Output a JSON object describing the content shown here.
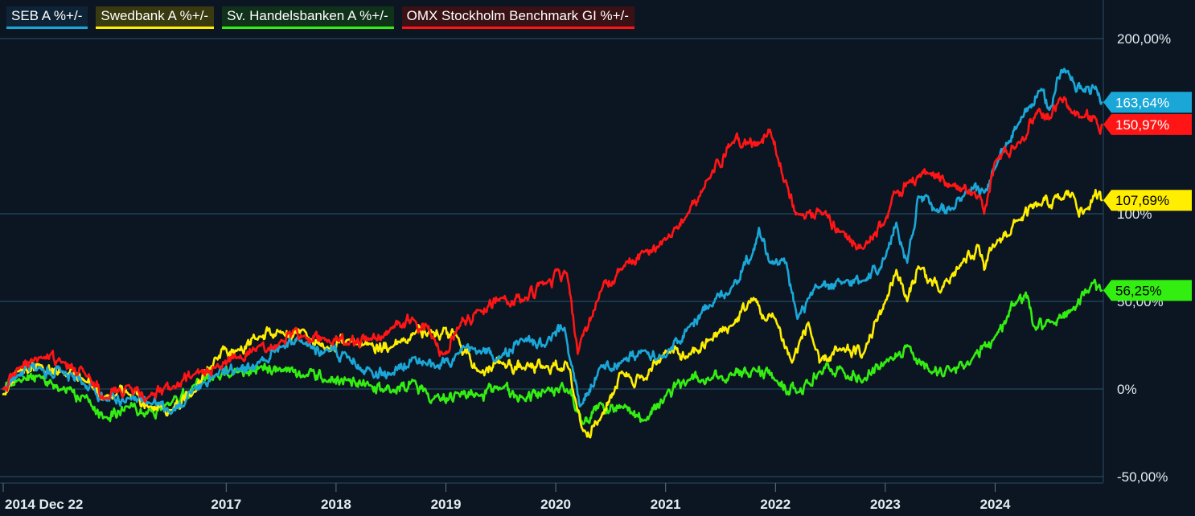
{
  "chart_data": {
    "type": "line",
    "title": "",
    "xlabel": "",
    "ylabel": "",
    "ylim": [
      -50,
      230
    ],
    "y_ticks": [
      {
        "value": 200,
        "label": "200,00%"
      },
      {
        "value": 100,
        "label": "100%"
      },
      {
        "value": 50,
        "label": "50,00%"
      },
      {
        "value": 0,
        "label": "0%"
      },
      {
        "value": -50,
        "label": "-50,00%"
      }
    ],
    "x_ticks": [
      {
        "value": 2014.97,
        "label": "2014 Dec 22"
      },
      {
        "value": 2017,
        "label": "2017"
      },
      {
        "value": 2018,
        "label": "2018"
      },
      {
        "value": 2019,
        "label": "2019"
      },
      {
        "value": 2020,
        "label": "2020"
      },
      {
        "value": 2021,
        "label": "2021"
      },
      {
        "value": 2022,
        "label": "2022"
      },
      {
        "value": 2023,
        "label": "2023"
      },
      {
        "value": 2024,
        "label": "2024"
      }
    ],
    "x_range": [
      2014.97,
      2024.97
    ],
    "legend_position": "top-left",
    "series": [
      {
        "name": "SEB A %+/-",
        "color": "#1aa7d8",
        "end_label": "163,64%",
        "points": [
          [
            2014.97,
            0
          ],
          [
            2015.1,
            8
          ],
          [
            2015.3,
            12
          ],
          [
            2015.5,
            10
          ],
          [
            2015.7,
            3
          ],
          [
            2015.9,
            -6
          ],
          [
            2016.1,
            -5
          ],
          [
            2016.3,
            -8
          ],
          [
            2016.5,
            -14
          ],
          [
            2016.7,
            0
          ],
          [
            2016.9,
            8
          ],
          [
            2017.1,
            12
          ],
          [
            2017.3,
            15
          ],
          [
            2017.5,
            24
          ],
          [
            2017.7,
            26
          ],
          [
            2017.9,
            22
          ],
          [
            2018.1,
            18
          ],
          [
            2018.3,
            12
          ],
          [
            2018.5,
            8
          ],
          [
            2018.7,
            18
          ],
          [
            2018.9,
            12
          ],
          [
            2019.1,
            20
          ],
          [
            2019.3,
            22
          ],
          [
            2019.5,
            18
          ],
          [
            2019.7,
            28
          ],
          [
            2019.9,
            24
          ],
          [
            2020.08,
            35
          ],
          [
            2020.22,
            -10
          ],
          [
            2020.4,
            12
          ],
          [
            2020.6,
            16
          ],
          [
            2020.8,
            22
          ],
          [
            2021.0,
            18
          ],
          [
            2021.2,
            35
          ],
          [
            2021.4,
            48
          ],
          [
            2021.6,
            58
          ],
          [
            2021.8,
            80
          ],
          [
            2021.85,
            92
          ],
          [
            2021.95,
            72
          ],
          [
            2022.1,
            72
          ],
          [
            2022.2,
            40
          ],
          [
            2022.4,
            58
          ],
          [
            2022.6,
            60
          ],
          [
            2022.8,
            62
          ],
          [
            2023.0,
            75
          ],
          [
            2023.1,
            95
          ],
          [
            2023.2,
            72
          ],
          [
            2023.3,
            110
          ],
          [
            2023.45,
            102
          ],
          [
            2023.6,
            103
          ],
          [
            2023.75,
            112
          ],
          [
            2023.9,
            112
          ],
          [
            2024.0,
            126
          ],
          [
            2024.2,
            150
          ],
          [
            2024.4,
            170
          ],
          [
            2024.5,
            160
          ],
          [
            2024.6,
            182
          ],
          [
            2024.7,
            178
          ],
          [
            2024.8,
            170
          ],
          [
            2024.9,
            172
          ],
          [
            2024.97,
            163.64
          ]
        ]
      },
      {
        "name": "Swedbank A %+/-",
        "color": "#ffee00",
        "end_label": "107,69%",
        "points": [
          [
            2014.97,
            -3
          ],
          [
            2015.1,
            10
          ],
          [
            2015.3,
            14
          ],
          [
            2015.5,
            10
          ],
          [
            2015.7,
            5
          ],
          [
            2015.9,
            -4
          ],
          [
            2016.1,
            -2
          ],
          [
            2016.3,
            -10
          ],
          [
            2016.5,
            -12
          ],
          [
            2016.7,
            -2
          ],
          [
            2016.9,
            18
          ],
          [
            2017.1,
            22
          ],
          [
            2017.3,
            30
          ],
          [
            2017.5,
            32
          ],
          [
            2017.7,
            34
          ],
          [
            2017.9,
            22
          ],
          [
            2018.1,
            28
          ],
          [
            2018.3,
            26
          ],
          [
            2018.5,
            24
          ],
          [
            2018.7,
            32
          ],
          [
            2018.85,
            34
          ],
          [
            2019.1,
            30
          ],
          [
            2019.3,
            10
          ],
          [
            2019.5,
            15
          ],
          [
            2019.7,
            12
          ],
          [
            2019.9,
            12
          ],
          [
            2020.1,
            15
          ],
          [
            2020.25,
            -24
          ],
          [
            2020.4,
            -18
          ],
          [
            2020.6,
            10
          ],
          [
            2020.8,
            5
          ],
          [
            2021.0,
            22
          ],
          [
            2021.2,
            18
          ],
          [
            2021.4,
            28
          ],
          [
            2021.6,
            36
          ],
          [
            2021.8,
            52
          ],
          [
            2021.9,
            40
          ],
          [
            2022.0,
            40
          ],
          [
            2022.15,
            15
          ],
          [
            2022.3,
            38
          ],
          [
            2022.4,
            15
          ],
          [
            2022.6,
            22
          ],
          [
            2022.8,
            20
          ],
          [
            2023.0,
            50
          ],
          [
            2023.1,
            68
          ],
          [
            2023.2,
            50
          ],
          [
            2023.3,
            70
          ],
          [
            2023.5,
            55
          ],
          [
            2023.7,
            72
          ],
          [
            2023.85,
            82
          ],
          [
            2023.9,
            68
          ],
          [
            2024.0,
            82
          ],
          [
            2024.2,
            96
          ],
          [
            2024.4,
            105
          ],
          [
            2024.6,
            108
          ],
          [
            2024.7,
            112
          ],
          [
            2024.8,
            100
          ],
          [
            2024.9,
            110
          ],
          [
            2024.97,
            107.69
          ]
        ]
      },
      {
        "name": "Sv. Handelsbanken A %+/-",
        "color": "#33ee11",
        "end_label": "56,25%",
        "points": [
          [
            2014.97,
            0
          ],
          [
            2015.1,
            5
          ],
          [
            2015.3,
            8
          ],
          [
            2015.5,
            0
          ],
          [
            2015.7,
            -4
          ],
          [
            2015.9,
            -16
          ],
          [
            2016.1,
            -10
          ],
          [
            2016.3,
            -12
          ],
          [
            2016.5,
            -8
          ],
          [
            2016.7,
            2
          ],
          [
            2016.9,
            8
          ],
          [
            2017.1,
            10
          ],
          [
            2017.3,
            12
          ],
          [
            2017.5,
            10
          ],
          [
            2017.7,
            8
          ],
          [
            2017.9,
            5
          ],
          [
            2018.1,
            5
          ],
          [
            2018.3,
            2
          ],
          [
            2018.5,
            -2
          ],
          [
            2018.7,
            5
          ],
          [
            2018.9,
            -4
          ],
          [
            2019.1,
            -2
          ],
          [
            2019.3,
            -4
          ],
          [
            2019.5,
            0
          ],
          [
            2019.7,
            -5
          ],
          [
            2019.9,
            -2
          ],
          [
            2020.1,
            0
          ],
          [
            2020.25,
            -20
          ],
          [
            2020.4,
            -8
          ],
          [
            2020.6,
            -10
          ],
          [
            2020.8,
            -18
          ],
          [
            2021.0,
            -4
          ],
          [
            2021.2,
            5
          ],
          [
            2021.4,
            5
          ],
          [
            2021.6,
            8
          ],
          [
            2021.8,
            12
          ],
          [
            2022.0,
            5
          ],
          [
            2022.2,
            -2
          ],
          [
            2022.4,
            10
          ],
          [
            2022.6,
            12
          ],
          [
            2022.8,
            5
          ],
          [
            2023.0,
            15
          ],
          [
            2023.2,
            25
          ],
          [
            2023.4,
            10
          ],
          [
            2023.6,
            10
          ],
          [
            2023.8,
            18
          ],
          [
            2024.0,
            30
          ],
          [
            2024.2,
            50
          ],
          [
            2024.3,
            52
          ],
          [
            2024.35,
            36
          ],
          [
            2024.5,
            38
          ],
          [
            2024.7,
            45
          ],
          [
            2024.85,
            55
          ],
          [
            2024.97,
            56.25
          ]
        ]
      },
      {
        "name": "OMX Stockholm Benchmark GI %+/-",
        "color": "#ff1515",
        "end_label": "150,97%",
        "points": [
          [
            2014.97,
            0
          ],
          [
            2015.1,
            12
          ],
          [
            2015.3,
            18
          ],
          [
            2015.5,
            15
          ],
          [
            2015.7,
            10
          ],
          [
            2015.9,
            -5
          ],
          [
            2016.1,
            2
          ],
          [
            2016.3,
            -4
          ],
          [
            2016.5,
            0
          ],
          [
            2016.7,
            8
          ],
          [
            2016.9,
            12
          ],
          [
            2017.1,
            18
          ],
          [
            2017.3,
            25
          ],
          [
            2017.5,
            28
          ],
          [
            2017.7,
            30
          ],
          [
            2017.9,
            28
          ],
          [
            2018.1,
            26
          ],
          [
            2018.3,
            28
          ],
          [
            2018.5,
            35
          ],
          [
            2018.7,
            40
          ],
          [
            2018.9,
            28
          ],
          [
            2018.98,
            20
          ],
          [
            2019.1,
            35
          ],
          [
            2019.3,
            45
          ],
          [
            2019.5,
            52
          ],
          [
            2019.7,
            50
          ],
          [
            2019.9,
            60
          ],
          [
            2020.1,
            66
          ],
          [
            2020.2,
            20
          ],
          [
            2020.4,
            55
          ],
          [
            2020.6,
            68
          ],
          [
            2020.8,
            78
          ],
          [
            2021.0,
            85
          ],
          [
            2021.2,
            100
          ],
          [
            2021.4,
            120
          ],
          [
            2021.6,
            140
          ],
          [
            2021.75,
            140
          ],
          [
            2021.85,
            140
          ],
          [
            2021.95,
            148
          ],
          [
            2022.1,
            118
          ],
          [
            2022.2,
            100
          ],
          [
            2022.4,
            102
          ],
          [
            2022.6,
            90
          ],
          [
            2022.8,
            80
          ],
          [
            2023.0,
            96
          ],
          [
            2023.1,
            112
          ],
          [
            2023.2,
            118
          ],
          [
            2023.4,
            123
          ],
          [
            2023.6,
            116
          ],
          [
            2023.8,
            112
          ],
          [
            2023.9,
            100
          ],
          [
            2024.0,
            130
          ],
          [
            2024.2,
            140
          ],
          [
            2024.4,
            160
          ],
          [
            2024.5,
            155
          ],
          [
            2024.6,
            165
          ],
          [
            2024.7,
            158
          ],
          [
            2024.8,
            155
          ],
          [
            2024.9,
            155
          ],
          [
            2024.97,
            150.97
          ]
        ]
      }
    ]
  }
}
